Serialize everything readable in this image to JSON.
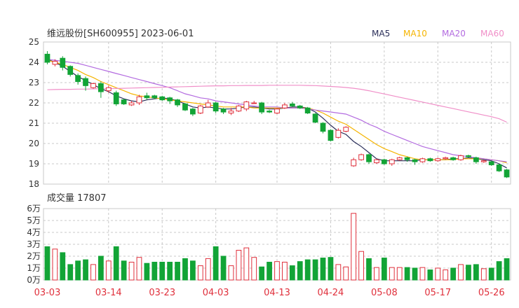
{
  "header": {
    "title": "维远股份[SH600955] 2023-06-01",
    "ma_labels": [
      {
        "label": "MA5",
        "color": "#2b2f5a"
      },
      {
        "label": "MA10",
        "color": "#f5b400"
      },
      {
        "label": "MA20",
        "color": "#b36be0"
      },
      {
        "label": "MA60",
        "color": "#f08fc8"
      }
    ]
  },
  "volume_header": {
    "label": "成交量 17807"
  },
  "colors": {
    "up": "#e0303c",
    "down": "#12a436",
    "grid": "#c8c8c8",
    "date_text": "#e0303c"
  },
  "chart_data": [
    {
      "type": "candlestick",
      "y_ticks": [
        25,
        24,
        23,
        22,
        21,
        20,
        19,
        18
      ],
      "ylim": [
        18,
        25
      ],
      "x_tick_labels": [
        {
          "label": "03-03",
          "index": 0
        },
        {
          "label": "03-14",
          "index": 8
        },
        {
          "label": "03-23",
          "index": 15
        },
        {
          "label": "04-03",
          "index": 22
        },
        {
          "label": "04-13",
          "index": 30
        },
        {
          "label": "04-24",
          "index": 37
        },
        {
          "label": "05-08",
          "index": 44
        },
        {
          "label": "05-17",
          "index": 51
        },
        {
          "label": "05-26",
          "index": 58
        }
      ],
      "candles": [
        [
          24.4,
          24.0,
          24.55,
          23.9
        ],
        [
          23.9,
          24.05,
          24.15,
          23.8
        ],
        [
          24.2,
          23.75,
          24.3,
          23.6
        ],
        [
          23.8,
          23.4,
          23.85,
          23.3
        ],
        [
          23.35,
          23.05,
          23.45,
          22.9
        ],
        [
          23.2,
          22.85,
          23.3,
          22.6
        ],
        [
          22.75,
          22.95,
          23.0,
          22.7
        ],
        [
          22.95,
          22.55,
          23.05,
          22.25
        ],
        [
          22.6,
          22.75,
          22.85,
          22.5
        ],
        [
          22.5,
          21.95,
          22.6,
          21.85
        ],
        [
          22.15,
          21.95,
          22.2,
          21.9
        ],
        [
          21.9,
          22.0,
          22.1,
          21.85
        ],
        [
          22.0,
          22.3,
          22.4,
          21.9
        ],
        [
          22.35,
          22.25,
          22.5,
          22.15
        ],
        [
          22.35,
          22.25,
          22.4,
          22.2
        ],
        [
          22.3,
          22.15,
          22.35,
          22.1
        ],
        [
          22.25,
          22.1,
          22.3,
          21.95
        ],
        [
          22.15,
          21.9,
          22.2,
          21.8
        ],
        [
          21.95,
          21.65,
          22.0,
          21.6
        ],
        [
          21.7,
          21.45,
          21.75,
          21.35
        ],
        [
          21.5,
          21.85,
          21.9,
          21.45
        ],
        [
          21.8,
          22.0,
          22.15,
          21.75
        ],
        [
          22.0,
          21.6,
          22.05,
          21.5
        ],
        [
          21.7,
          21.55,
          21.75,
          21.45
        ],
        [
          21.5,
          21.6,
          21.75,
          21.4
        ],
        [
          21.6,
          21.85,
          21.9,
          21.55
        ],
        [
          21.7,
          22.05,
          22.1,
          21.6
        ],
        [
          22.0,
          22.0,
          22.1,
          21.95
        ],
        [
          22.0,
          21.55,
          22.05,
          21.45
        ],
        [
          21.6,
          21.55,
          21.65,
          21.5
        ],
        [
          21.5,
          21.7,
          21.75,
          21.45
        ],
        [
          21.75,
          21.9,
          22.0,
          21.7
        ],
        [
          21.95,
          21.85,
          22.05,
          21.8
        ],
        [
          21.85,
          21.75,
          21.9,
          21.7
        ],
        [
          21.75,
          21.5,
          21.8,
          21.45
        ],
        [
          21.45,
          21.05,
          21.5,
          21.0
        ],
        [
          21.0,
          20.6,
          21.05,
          20.5
        ],
        [
          20.65,
          20.15,
          20.7,
          20.1
        ],
        [
          20.3,
          20.65,
          20.75,
          20.25
        ],
        [
          20.6,
          20.8,
          20.85,
          20.55
        ],
        [
          18.9,
          19.2,
          19.3,
          18.85
        ],
        [
          19.2,
          19.45,
          19.5,
          19.15
        ],
        [
          19.45,
          19.1,
          19.5,
          19.0
        ],
        [
          19.05,
          19.2,
          19.25,
          19.0
        ],
        [
          19.2,
          19.0,
          19.25,
          18.95
        ],
        [
          19.0,
          19.2,
          19.25,
          18.9
        ],
        [
          19.2,
          19.3,
          19.35,
          19.15
        ],
        [
          19.3,
          19.2,
          19.35,
          19.1
        ],
        [
          19.2,
          19.1,
          19.25,
          18.95
        ],
        [
          19.1,
          19.25,
          19.3,
          19.05
        ],
        [
          19.25,
          19.15,
          19.3,
          19.1
        ],
        [
          19.15,
          19.25,
          19.3,
          19.1
        ],
        [
          19.25,
          19.3,
          19.35,
          19.2
        ],
        [
          19.3,
          19.2,
          19.35,
          19.15
        ],
        [
          19.2,
          19.4,
          19.45,
          19.15
        ],
        [
          19.4,
          19.35,
          19.45,
          19.3
        ],
        [
          19.3,
          19.1,
          19.35,
          19.0
        ],
        [
          19.1,
          19.15,
          19.2,
          19.05
        ],
        [
          19.1,
          18.95,
          19.15,
          18.9
        ],
        [
          18.95,
          18.65,
          19.0,
          18.6
        ],
        [
          18.7,
          18.35,
          18.75,
          18.3
        ]
      ],
      "ma_series": [
        {
          "name": "MA5",
          "color": "#2b2f5a",
          "start": 0,
          "values": [
            24.15,
            24.0,
            23.8,
            23.55,
            23.3,
            23.1,
            22.9,
            22.7,
            22.55,
            22.35,
            22.2,
            22.1,
            22.05,
            22.15,
            22.2,
            22.25,
            22.2,
            22.1,
            21.95,
            21.8,
            21.75,
            21.8,
            21.75,
            21.7,
            21.7,
            21.75,
            21.8,
            21.8,
            21.75,
            21.7,
            21.7,
            21.75,
            21.8,
            21.8,
            21.75,
            21.55,
            21.25,
            20.9,
            20.6,
            20.45,
            20.1,
            19.85,
            19.55,
            19.25,
            19.15,
            19.15,
            19.15,
            19.15,
            19.15,
            19.2,
            19.2,
            19.2,
            19.2,
            19.25,
            19.25,
            19.3,
            19.25,
            19.2,
            19.15,
            19.0,
            18.8
          ]
        },
        {
          "name": "MA10",
          "color": "#f5b400",
          "start": 0,
          "values": [
            24.1,
            24.0,
            23.9,
            23.75,
            23.6,
            23.4,
            23.25,
            23.05,
            22.9,
            22.75,
            22.6,
            22.45,
            22.35,
            22.3,
            22.25,
            22.2,
            22.15,
            22.1,
            22.05,
            22.0,
            21.95,
            21.9,
            21.85,
            21.8,
            21.8,
            21.8,
            21.8,
            21.75,
            21.75,
            21.75,
            21.75,
            21.75,
            21.75,
            21.75,
            21.75,
            21.65,
            21.5,
            21.3,
            21.1,
            20.95,
            20.7,
            20.45,
            20.2,
            19.95,
            19.75,
            19.6,
            19.45,
            19.35,
            19.25,
            19.2,
            19.2,
            19.2,
            19.2,
            19.2,
            19.25,
            19.25,
            19.25,
            19.25,
            19.2,
            19.15,
            19.05
          ]
        },
        {
          "name": "MA20",
          "color": "#b36be0",
          "start": 0,
          "values": [
            24.15,
            24.1,
            24.05,
            24.0,
            23.95,
            23.85,
            23.75,
            23.65,
            23.55,
            23.45,
            23.35,
            23.25,
            23.15,
            23.05,
            22.95,
            22.85,
            22.75,
            22.6,
            22.45,
            22.35,
            22.25,
            22.2,
            22.1,
            22.05,
            22.0,
            21.95,
            21.9,
            21.85,
            21.8,
            21.8,
            21.8,
            21.75,
            21.75,
            21.75,
            21.7,
            21.65,
            21.6,
            21.55,
            21.5,
            21.45,
            21.3,
            21.15,
            20.95,
            20.8,
            20.6,
            20.45,
            20.3,
            20.15,
            20.0,
            19.85,
            19.75,
            19.65,
            19.55,
            19.45,
            19.4,
            19.35,
            19.3,
            19.25,
            19.2,
            19.15,
            19.1
          ]
        },
        {
          "name": "MA60",
          "color": "#f08fc8",
          "start": 0,
          "values": [
            22.65,
            22.66,
            22.67,
            22.67,
            22.68,
            22.68,
            22.69,
            22.7,
            22.7,
            22.71,
            22.72,
            22.73,
            22.74,
            22.75,
            22.76,
            22.77,
            22.78,
            22.79,
            22.8,
            22.81,
            22.82,
            22.83,
            22.84,
            22.84,
            22.85,
            22.85,
            22.86,
            22.86,
            22.86,
            22.87,
            22.87,
            22.87,
            22.87,
            22.87,
            22.86,
            22.85,
            22.83,
            22.81,
            22.79,
            22.76,
            22.72,
            22.67,
            22.6,
            22.52,
            22.44,
            22.36,
            22.28,
            22.2,
            22.12,
            22.04,
            21.96,
            21.88,
            21.8,
            21.72,
            21.64,
            21.56,
            21.48,
            21.4,
            21.32,
            21.22,
            21.05
          ]
        }
      ]
    },
    {
      "type": "bar",
      "title": "成交量",
      "y_ticks": [
        "6万",
        "5万",
        "4万",
        "3万",
        "2万",
        "1万",
        "0万"
      ],
      "ylim": [
        0,
        60000
      ],
      "values": [
        28000,
        26000,
        23000,
        13000,
        16000,
        17000,
        13000,
        20000,
        16000,
        28000,
        16000,
        15000,
        19000,
        14000,
        15000,
        15000,
        15000,
        15000,
        18000,
        16000,
        12000,
        18000,
        28000,
        20000,
        12000,
        25000,
        27000,
        19000,
        11000,
        15000,
        15500,
        15000,
        12000,
        15500,
        17000,
        17000,
        18500,
        19000,
        13000,
        11000,
        56000,
        24000,
        18000,
        10500,
        18500,
        10500,
        10500,
        10500,
        10000,
        10500,
        8500,
        10000,
        8500,
        10000,
        13000,
        12500,
        13000,
        9500,
        10000,
        15500,
        18000
      ]
    }
  ]
}
